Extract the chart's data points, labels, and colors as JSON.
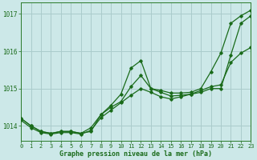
{
  "background_color": "#cce8e8",
  "grid_color": "#aacccc",
  "line_color": "#1a6b1a",
  "x_min": 0,
  "x_max": 23,
  "y_min": 1013.6,
  "y_max": 1017.3,
  "yticks": [
    1014,
    1015,
    1016,
    1017
  ],
  "xlabel": "Graphe pression niveau de la mer (hPa)",
  "series": [
    [
      1014.2,
      1014.0,
      1013.85,
      1013.8,
      1013.85,
      1013.85,
      1013.8,
      1013.85,
      1014.3,
      1014.5,
      1014.65,
      1015.05,
      1015.35,
      1015.0,
      1014.9,
      1014.8,
      1014.82,
      1014.85,
      1014.9,
      1015.0,
      1015.0,
      1015.9,
      1016.75,
      1016.95
    ],
    [
      1014.2,
      1014.0,
      1013.85,
      1013.8,
      1013.85,
      1013.85,
      1013.8,
      1013.95,
      1014.3,
      1014.55,
      1014.85,
      1015.55,
      1015.75,
      1015.0,
      1014.95,
      1014.88,
      1014.88,
      1014.9,
      1015.0,
      1015.45,
      1015.95,
      1016.75,
      1016.95,
      1017.1
    ],
    [
      1014.15,
      1013.95,
      1013.82,
      1013.78,
      1013.82,
      1013.82,
      1013.78,
      1013.88,
      1014.22,
      1014.42,
      1014.62,
      1014.82,
      1015.0,
      1014.9,
      1014.78,
      1014.72,
      1014.78,
      1014.85,
      1014.95,
      1015.05,
      1015.1,
      1015.7,
      1015.95,
      1016.1
    ]
  ]
}
